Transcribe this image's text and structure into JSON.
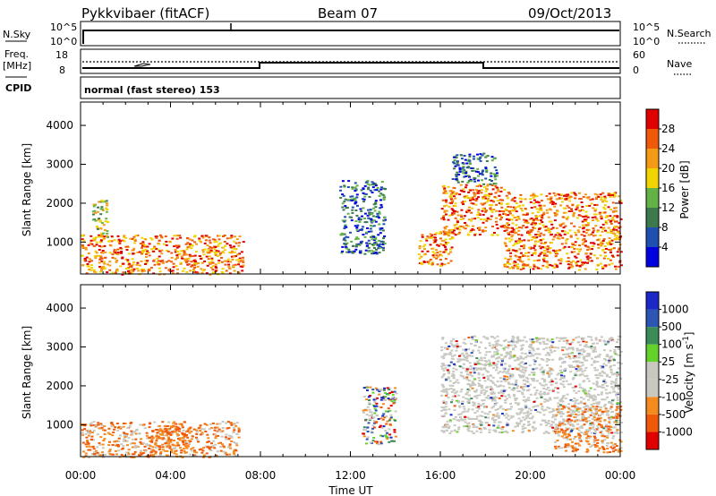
{
  "header": {
    "station": "Pykkvibaer (fitACF)",
    "beam": "Beam 07",
    "date": "09/Oct/2013"
  },
  "strip_nsky": {
    "left_label": "N.Sky",
    "left_ticks": [
      "10^5",
      "10^0"
    ],
    "right_label": "N.Search",
    "right_ticks": [
      "10^5",
      "10^0"
    ]
  },
  "strip_freq": {
    "left_label_1": "Freq.",
    "left_label_2": "[MHz]",
    "left_ticks": [
      "18",
      "8"
    ],
    "right_label": "Nave",
    "right_ticks": [
      "60",
      "0"
    ]
  },
  "strip_cpid": {
    "label": "CPID",
    "text": "normal (fast stereo) 153"
  },
  "colors": {
    "power": [
      "#0000e0",
      "#1f4fb0",
      "#3c7a4e",
      "#63b246",
      "#f0d400",
      "#f59a14",
      "#ef5a0a",
      "#e00000"
    ],
    "velocity": [
      "#e00000",
      "#ef5a0a",
      "#f58a1e",
      "#c8c8c0",
      "#c8c8c0",
      "#64d22a",
      "#3c8c5a",
      "#2d55b4",
      "#1a28c8"
    ]
  },
  "chart_data": [
    {
      "type": "heatmap",
      "panel": "power",
      "ylabel": "Slant Range [km]",
      "y_ticks": [
        "1000",
        "2000",
        "3000",
        "4000"
      ],
      "ylim": [
        180,
        4600
      ],
      "xlim_hours": [
        0,
        24
      ],
      "colorbar_label": "Power [dB]",
      "colorbar_ticks": [
        "4",
        "8",
        "12",
        "16",
        "20",
        "24",
        "28"
      ],
      "colorbar_range": [
        0,
        32
      ],
      "echo_regions": [
        {
          "t": [
            0.0,
            7.2
          ],
          "r": [
            180,
            1200
          ],
          "level": "strong"
        },
        {
          "t": [
            0.5,
            1.2
          ],
          "r": [
            1100,
            2100
          ],
          "level": "medium"
        },
        {
          "t": [
            11.5,
            13.5
          ],
          "r": [
            700,
            2600
          ],
          "level": "weak"
        },
        {
          "t": [
            15.0,
            16.5
          ],
          "r": [
            400,
            1300
          ],
          "level": "strong"
        },
        {
          "t": [
            16.0,
            18.8
          ],
          "r": [
            1200,
            2500
          ],
          "level": "strong"
        },
        {
          "t": [
            18.8,
            24.0
          ],
          "r": [
            300,
            2300
          ],
          "level": "strong"
        },
        {
          "t": [
            16.5,
            18.5
          ],
          "r": [
            2500,
            3300
          ],
          "level": "weak"
        }
      ]
    },
    {
      "type": "heatmap",
      "panel": "velocity",
      "ylabel": "Slant Range [km]",
      "y_ticks": [
        "1000",
        "2000",
        "3000",
        "4000"
      ],
      "ylim": [
        180,
        4600
      ],
      "xlim_hours": [
        0,
        24
      ],
      "xlabel": "Time UT",
      "x_ticks": [
        "00:00",
        "04:00",
        "08:00",
        "12:00",
        "16:00",
        "20:00",
        "00:00"
      ],
      "colorbar_label": "Velocity [m s^-1]",
      "colorbar_ticks": [
        "1000",
        "500",
        "100",
        "25",
        "-25",
        "-100",
        "-500",
        "-1000"
      ],
      "echo_regions": [
        {
          "t": [
            0.0,
            7.0
          ],
          "r": [
            180,
            1100
          ],
          "level": "negative"
        },
        {
          "t": [
            3.0,
            4.8
          ],
          "r": [
            300,
            1000
          ],
          "level": "strong-negative"
        },
        {
          "t": [
            16.0,
            24.0
          ],
          "r": [
            800,
            3300
          ],
          "level": "ground"
        },
        {
          "t": [
            12.5,
            14.0
          ],
          "r": [
            500,
            2000
          ],
          "level": "mixed"
        },
        {
          "t": [
            21.0,
            24.0
          ],
          "r": [
            300,
            1500
          ],
          "level": "negative"
        }
      ]
    }
  ]
}
